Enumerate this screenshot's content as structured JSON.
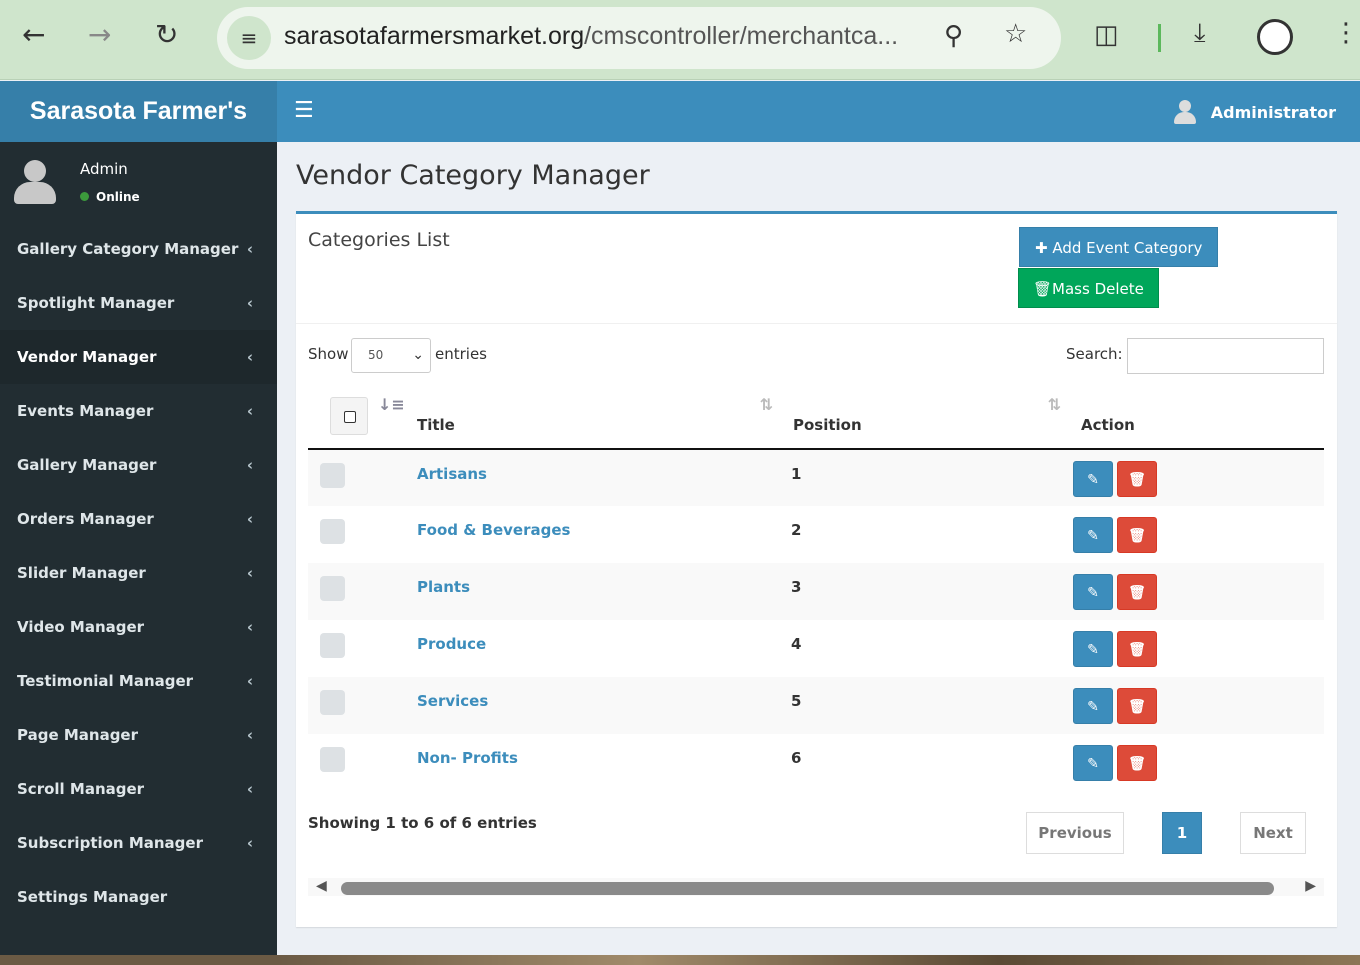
{
  "browser": {
    "url_domain": "sarasotafarmersmarket.org",
    "url_path": "/cmscontroller/merchantca..."
  },
  "header": {
    "brand": "Sarasota Farmer's",
    "user": "Administrator"
  },
  "sidebar": {
    "user_name": "Admin",
    "status": "Online",
    "items": [
      {
        "label": "Gallery Category Manager"
      },
      {
        "label": "Spotlight Manager"
      },
      {
        "label": "Vendor Manager",
        "active": true
      },
      {
        "label": "Events Manager"
      },
      {
        "label": "Gallery Manager"
      },
      {
        "label": "Orders Manager"
      },
      {
        "label": "Slider Manager"
      },
      {
        "label": "Video Manager"
      },
      {
        "label": "Testimonial Manager"
      },
      {
        "label": "Page Manager"
      },
      {
        "label": "Scroll Manager"
      },
      {
        "label": "Subscription Manager"
      },
      {
        "label": "Settings Manager"
      }
    ]
  },
  "page": {
    "title": "Vendor Category Manager",
    "box_title": "Categories List",
    "add_label": "Add Event Category",
    "mass_delete_label": "Mass Delete",
    "show_label": "Show",
    "entries_value": "50",
    "entries_label": "entries",
    "search_label": "Search:",
    "search_value": "",
    "columns": {
      "title": "Title",
      "position": "Position",
      "action": "Action"
    },
    "rows": [
      {
        "title": "Artisans",
        "position": "1"
      },
      {
        "title": "Food & Beverages",
        "position": "2"
      },
      {
        "title": "Plants",
        "position": "3"
      },
      {
        "title": "Produce",
        "position": "4"
      },
      {
        "title": "Services",
        "position": "5"
      },
      {
        "title": "Non- Profits",
        "position": "6"
      }
    ],
    "info": "Showing 1 to 6 of 6 entries",
    "prev": "Previous",
    "page": "1",
    "next": "Next"
  },
  "colors": {
    "primary": "#3c8dbc",
    "success": "#00a65a",
    "danger": "#dd4b39",
    "sidebar": "#222d32"
  }
}
